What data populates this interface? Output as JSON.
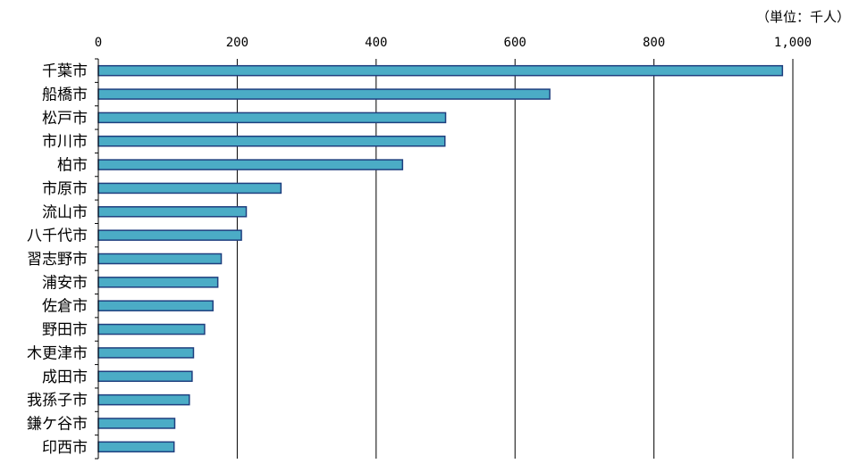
{
  "chart_data": {
    "type": "bar",
    "orientation": "horizontal",
    "unit": "（単位：千人）",
    "categories": [
      "千葉市",
      "船橋市",
      "松戸市",
      "市川市",
      "柏市",
      "市原市",
      "流山市",
      "八千代市",
      "習志野市",
      "浦安市",
      "佐倉市",
      "野田市",
      "木更津市",
      "成田市",
      "我孫子市",
      "鎌ケ谷市",
      "印西市"
    ],
    "values": [
      985,
      650,
      500,
      499,
      438,
      263,
      213,
      206,
      177,
      172,
      165,
      153,
      137,
      135,
      131,
      110,
      109
    ],
    "xlim": [
      0,
      1000
    ],
    "x_ticks": [
      0,
      200,
      400,
      600,
      800,
      1000
    ],
    "x_tick_labels": [
      "0",
      "200",
      "400",
      "600",
      "800",
      "1,000"
    ],
    "x_axis_position": "top",
    "grid": true,
    "bar_color": "#4BACC6",
    "bar_edge_color": "#1F3F7F"
  }
}
